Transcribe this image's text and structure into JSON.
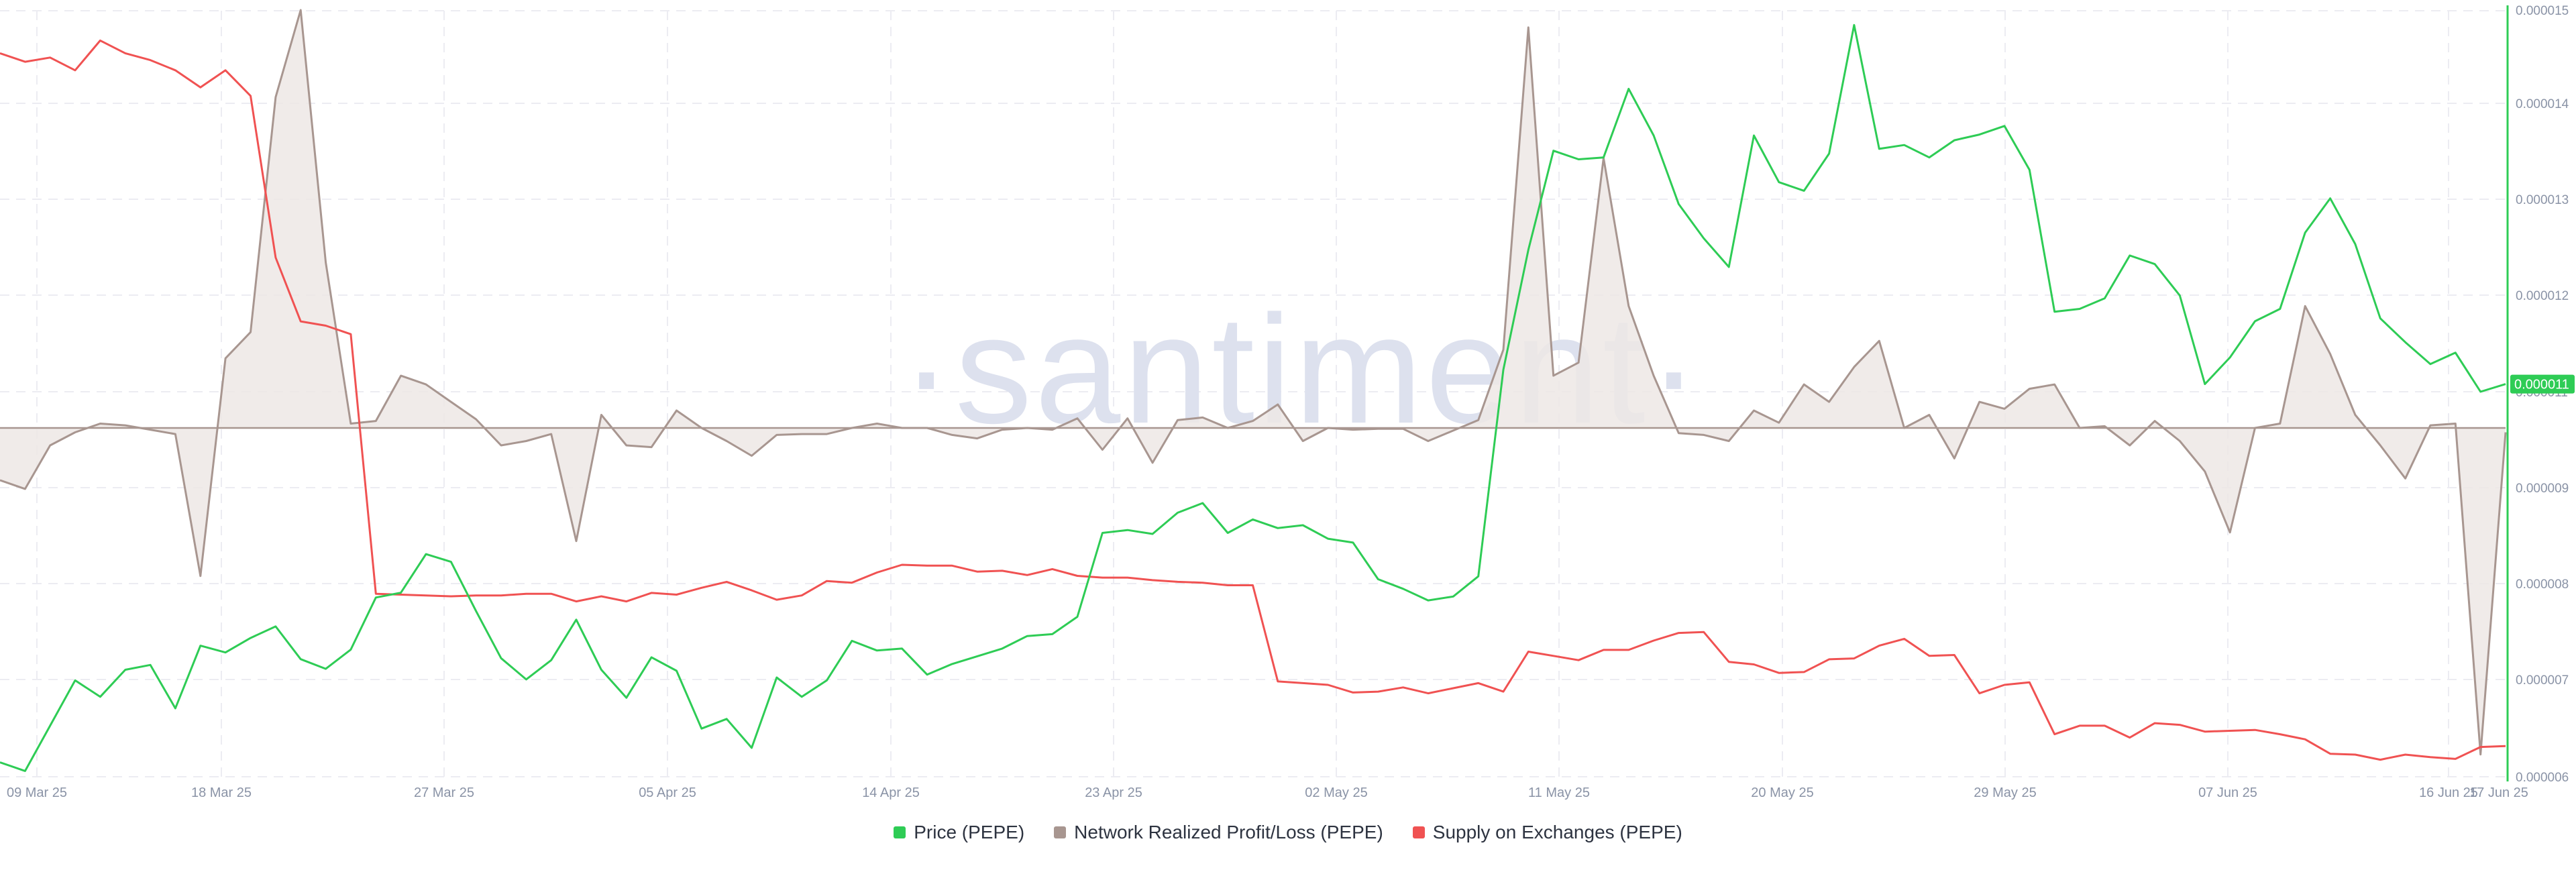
{
  "watermark": "·santiment·",
  "colors": {
    "price": "#2ecc55",
    "nrpl": "#a89690",
    "nrpl_fill": "#ede7e5",
    "supply": "#f05252",
    "grid": "#ececf2",
    "axis": "#2ecc55",
    "axis_text": "#8a93a6"
  },
  "chart_data": {
    "type": "line",
    "x_ticks": [
      "09 Mar 25",
      "18 Mar 25",
      "27 Mar 25",
      "05 Apr 25",
      "14 Apr 25",
      "23 Apr 25",
      "02 May 25",
      "11 May 25",
      "20 May 25",
      "29 May 25",
      "07 Jun 25",
      "16 Jun 25",
      "17 Jun 25"
    ],
    "y_ticks": [
      "0.000006",
      "0.000007",
      "0.000008",
      "0.000009",
      "0.000011",
      "0.000012",
      "0.000013",
      "0.000014",
      "0.000015"
    ],
    "price_label": "0.000011",
    "ylim": [
      6e-06,
      1.5e-05
    ],
    "legend_position": "bottom",
    "series": [
      {
        "name": "Price (PEPE)",
        "key": "price",
        "values": [
          6.15,
          6.06,
          6.53,
          7.0,
          6.83,
          7.11,
          7.16,
          6.71,
          7.36,
          7.29,
          7.44,
          7.56,
          7.22,
          7.12,
          7.32,
          7.86,
          7.91,
          8.31,
          8.23,
          7.72,
          7.23,
          7.01,
          7.21,
          7.63,
          7.11,
          6.82,
          7.24,
          7.1,
          6.5,
          6.6,
          6.3,
          7.03,
          6.83,
          7.0,
          7.41,
          7.31,
          7.33,
          7.06,
          7.17,
          7.25,
          7.33,
          7.46,
          7.48,
          7.66,
          8.53,
          8.56,
          8.52,
          8.74,
          8.84,
          8.53,
          8.67,
          8.58,
          8.61,
          8.47,
          8.43,
          8.05,
          7.95,
          7.83,
          7.87,
          8.08,
          11.23,
          12.49,
          13.53,
          13.44,
          13.46,
          14.18,
          13.69,
          12.97,
          12.61,
          12.31,
          13.69,
          13.2,
          13.11,
          13.5,
          14.85,
          13.55,
          13.59,
          13.46,
          13.64,
          13.7,
          13.79,
          13.33,
          11.84,
          11.87,
          11.98,
          12.43,
          12.34,
          12.01,
          11.08,
          11.36,
          11.74,
          11.87,
          12.67,
          13.03,
          12.55,
          11.77,
          11.52,
          11.29,
          11.41,
          11.0,
          11.08
        ]
      },
      {
        "name": "Network Realized Profit/Loss (PEPE)",
        "key": "nrpl",
        "values": [
          -0.6,
          -0.7,
          -0.2,
          -0.05,
          0.05,
          0.03,
          -0.02,
          -0.07,
          -1.7,
          0.8,
          1.1,
          3.8,
          4.8,
          1.9,
          0.05,
          0.08,
          0.6,
          0.5,
          0.3,
          0.1,
          -0.2,
          -0.15,
          -0.07,
          -1.3,
          0.15,
          -0.2,
          -0.22,
          0.2,
          0.0,
          -0.15,
          -0.32,
          -0.08,
          -0.07,
          -0.07,
          0.0,
          0.05,
          0.0,
          0.0,
          -0.08,
          -0.12,
          -0.02,
          0.0,
          -0.02,
          0.11,
          -0.25,
          0.11,
          -0.4,
          0.09,
          0.12,
          0.0,
          0.08,
          0.27,
          -0.15,
          0.0,
          -0.02,
          -0.01,
          -0.01,
          -0.15,
          -0.03,
          0.09,
          0.9,
          4.6,
          0.6,
          0.75,
          3.1,
          1.4,
          0.6,
          -0.06,
          -0.08,
          -0.15,
          0.2,
          0.06,
          0.5,
          0.3,
          0.7,
          1.0,
          0.0,
          0.15,
          -0.35,
          0.3,
          0.22,
          0.45,
          0.5,
          0.0,
          0.02,
          -0.2,
          0.08,
          -0.15,
          -0.5,
          -1.2,
          0.0,
          0.05,
          1.4,
          0.85,
          0.15,
          -0.2,
          -0.58,
          0.03,
          0.05,
          -3.75,
          -0.05
        ]
      },
      {
        "name": "Supply on Exchanges (PEPE)",
        "key": "supply",
        "values": [
          14.5,
          14.4,
          14.45,
          14.3,
          14.65,
          14.5,
          14.42,
          14.3,
          14.1,
          14.3,
          14.0,
          12.1,
          11.35,
          11.3,
          11.2,
          8.15,
          8.14,
          8.13,
          8.12,
          8.13,
          8.13,
          8.15,
          8.15,
          8.06,
          8.12,
          8.06,
          8.16,
          8.14,
          8.22,
          8.29,
          8.19,
          8.08,
          8.13,
          8.3,
          8.28,
          8.4,
          8.49,
          8.48,
          8.48,
          8.41,
          8.42,
          8.37,
          8.44,
          8.36,
          8.34,
          8.34,
          8.31,
          8.29,
          8.28,
          8.25,
          8.25,
          7.12,
          7.1,
          7.08,
          6.99,
          7.0,
          7.05,
          6.98,
          7.04,
          7.1,
          7.0,
          7.47,
          7.42,
          7.37,
          7.49,
          7.49,
          7.6,
          7.69,
          7.7,
          7.35,
          7.32,
          7.22,
          7.23,
          7.38,
          7.39,
          7.54,
          7.62,
          7.42,
          7.43,
          6.98,
          7.08,
          7.11,
          6.5,
          6.6,
          6.6,
          6.46,
          6.63,
          6.61,
          6.53,
          6.54,
          6.55,
          6.5,
          6.44,
          6.27,
          6.26,
          6.2,
          6.26,
          6.23,
          6.21,
          6.35,
          6.36
        ]
      }
    ]
  },
  "legend": {
    "price": "Price (PEPE)",
    "nrpl": "Network Realized Profit/Loss (PEPE)",
    "supply": "Supply on Exchanges (PEPE)"
  }
}
